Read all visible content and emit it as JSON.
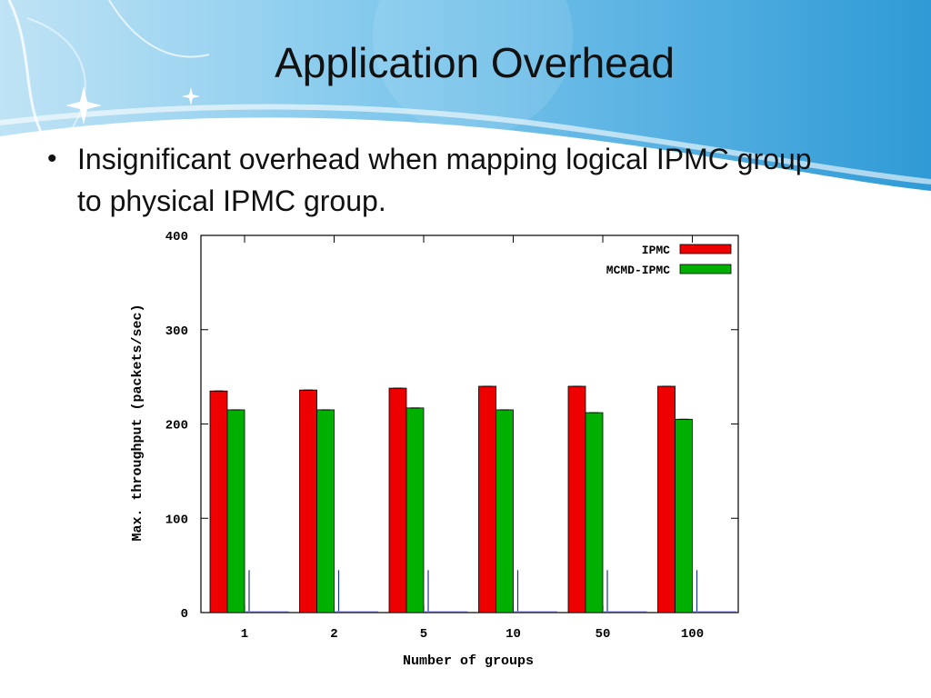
{
  "slide": {
    "title": "Application Overhead",
    "bullet": "Insignificant overhead when mapping logical IPMC group to physical IPMC group."
  },
  "colors": {
    "banner_dark": "#3a9fd8",
    "banner_light": "#bfe3f5",
    "ipmc": "#ee0000",
    "mcmd_ipmc": "#00b000"
  },
  "chart_data": {
    "type": "bar",
    "title": "",
    "xlabel": "Number of groups",
    "ylabel": "Max. throughput (packets/sec)",
    "ylim": [
      0,
      400
    ],
    "yticks": [
      "0",
      "100",
      "200",
      "300",
      "400"
    ],
    "categories": [
      "1",
      "2",
      "5",
      "10",
      "50",
      "100"
    ],
    "series": [
      {
        "name": "IPMC",
        "color": "#ee0000",
        "values": [
          235,
          236,
          238,
          240,
          240,
          240
        ]
      },
      {
        "name": "MCMD-IPMC",
        "color": "#00b000",
        "values": [
          215,
          215,
          217,
          215,
          212,
          205
        ]
      }
    ],
    "legend_position": "top-right",
    "grid": false
  }
}
